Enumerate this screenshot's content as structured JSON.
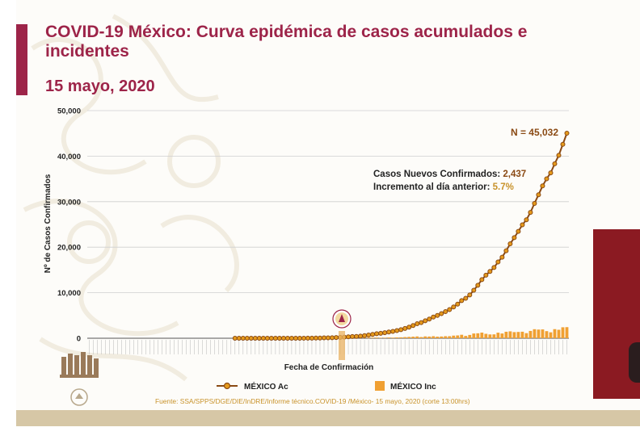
{
  "header": {
    "title": "COVID-19 México: Curva epidémica de casos acumulados e incidentes",
    "date": "15 mayo, 2020"
  },
  "annotations": {
    "total": "N = 45,032",
    "new_cases_label": "Casos Nuevos Confirmados:",
    "new_cases_value": "2,437",
    "increase_label": "Incremento al día anterior:",
    "increase_value": "5.7%"
  },
  "source": "Fuente: SSA/SPPS/DGE/DIE/InDRE/Informe técnico.COVID-19 /México- 15 mayo, 2020 (corte 13:00hrs)",
  "colors": {
    "accumulated": "#8a4a14",
    "accumulated_marker": "#e59a1c",
    "incident": "#f0a032",
    "title": "#9d2449",
    "highlight": "#9d2449"
  },
  "chart_data": {
    "type": "line",
    "xlabel": "Fecha de Confirmación",
    "ylabel": "Nº de Casos Confirmados",
    "ylim": [
      0,
      50000
    ],
    "yticks": [
      "0",
      "10,000",
      "20,000",
      "30,000",
      "40,000",
      "50,000"
    ],
    "grid": true,
    "legend_position": "bottom",
    "series": [
      {
        "name": "MÉXICO Ac",
        "type": "line",
        "values": [
          0,
          0,
          0,
          0,
          0,
          0,
          0,
          0,
          0,
          0,
          0,
          0,
          0,
          0,
          0,
          0,
          0,
          0,
          0,
          0,
          0,
          0,
          0,
          0,
          0,
          0,
          0,
          0,
          0,
          0,
          0,
          0,
          0,
          0,
          0,
          0,
          1,
          1,
          2,
          2,
          3,
          4,
          4,
          5,
          5,
          6,
          6,
          7,
          7,
          7,
          7,
          7,
          7,
          11,
          12,
          26,
          41,
          53,
          82,
          93,
          118,
          164,
          203,
          251,
          316,
          367,
          405,
          475,
          585,
          717,
          848,
          993,
          1094,
          1215,
          1378,
          1510,
          1688,
          1890,
          2143,
          2439,
          2785,
          3181,
          3441,
          3844,
          4219,
          4661,
          5014,
          5399,
          5847,
          6297,
          6875,
          7497,
          8261,
          8772,
          9501,
          10544,
          11633,
          12872,
          13842,
          14677,
          15529,
          16752,
          17799,
          19224,
          20739,
          22088,
          23471,
          24905,
          26025,
          27634,
          29616,
          31522,
          33460,
          35022,
          36327,
          38324,
          40186,
          42595,
          45032
        ]
      },
      {
        "name": "MÉXICO Inc",
        "type": "bar",
        "values": [
          0,
          0,
          0,
          0,
          0,
          0,
          0,
          0,
          0,
          0,
          0,
          0,
          0,
          0,
          0,
          0,
          0,
          0,
          0,
          0,
          0,
          0,
          0,
          0,
          0,
          0,
          0,
          0,
          0,
          0,
          0,
          0,
          0,
          0,
          0,
          0,
          1,
          0,
          1,
          0,
          1,
          1,
          0,
          1,
          0,
          1,
          0,
          1,
          0,
          0,
          0,
          0,
          0,
          4,
          1,
          14,
          15,
          12,
          29,
          11,
          25,
          46,
          39,
          48,
          65,
          51,
          38,
          70,
          110,
          132,
          131,
          145,
          101,
          121,
          163,
          132,
          178,
          202,
          253,
          296,
          346,
          396,
          260,
          403,
          375,
          442,
          353,
          385,
          448,
          450,
          578,
          622,
          764,
          511,
          729,
          1043,
          1089,
          1239,
          970,
          835,
          852,
          1223,
          1047,
          1425,
          1515,
          1349,
          1383,
          1434,
          1120,
          1609,
          1982,
          1906,
          1938,
          1562,
          1305,
          1997,
          1862,
          2409,
          2437
        ]
      }
    ]
  }
}
